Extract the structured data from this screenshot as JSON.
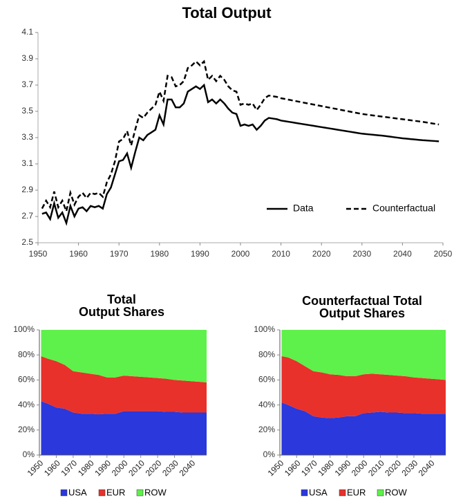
{
  "chart_data": [
    {
      "type": "line",
      "title": "Total Output",
      "x": [
        1951,
        1952,
        1953,
        1954,
        1955,
        1956,
        1957,
        1958,
        1959,
        1960,
        1961,
        1962,
        1963,
        1964,
        1965,
        1966,
        1967,
        1968,
        1969,
        1970,
        1971,
        1972,
        1973,
        1974,
        1975,
        1976,
        1977,
        1978,
        1979,
        1980,
        1981,
        1982,
        1983,
        1984,
        1985,
        1986,
        1987,
        1988,
        1989,
        1990,
        1991,
        1992,
        1993,
        1994,
        1995,
        1996,
        1997,
        1998,
        1999,
        2000,
        2001,
        2002,
        2003,
        2004,
        2005,
        2006,
        2007,
        2008,
        2009,
        2010,
        2011,
        2012,
        2013,
        2014,
        2015,
        2016,
        2017,
        2018,
        2019,
        2020,
        2021,
        2022,
        2023,
        2024,
        2025,
        2026,
        2027,
        2028,
        2029,
        2030,
        2031,
        2032,
        2033,
        2034,
        2035,
        2036,
        2037,
        2038,
        2039,
        2040,
        2041,
        2042,
        2043,
        2044,
        2045,
        2046,
        2047,
        2048,
        2049
      ],
      "series": [
        {
          "name": "Data",
          "color": "#000000",
          "line_style": "solid",
          "values": [
            2.72,
            2.73,
            2.68,
            2.8,
            2.69,
            2.73,
            2.65,
            2.78,
            2.7,
            2.76,
            2.77,
            2.74,
            2.78,
            2.77,
            2.78,
            2.76,
            2.87,
            2.92,
            3.02,
            3.12,
            3.13,
            3.18,
            3.07,
            3.19,
            3.3,
            3.28,
            3.32,
            3.34,
            3.36,
            3.47,
            3.4,
            3.59,
            3.59,
            3.53,
            3.53,
            3.56,
            3.65,
            3.67,
            3.69,
            3.67,
            3.7,
            3.57,
            3.59,
            3.56,
            3.59,
            3.56,
            3.52,
            3.49,
            3.48,
            3.39,
            3.4,
            3.39,
            3.4,
            3.36,
            3.39,
            3.43,
            3.45,
            3.445,
            3.44,
            3.43,
            3.425,
            3.42,
            3.415,
            3.41,
            3.405,
            3.4,
            3.395,
            3.39,
            3.385,
            3.38,
            3.375,
            3.37,
            3.365,
            3.36,
            3.355,
            3.35,
            3.345,
            3.34,
            3.335,
            3.33,
            3.327,
            3.324,
            3.321,
            3.318,
            3.315,
            3.311,
            3.307,
            3.303,
            3.299,
            3.295,
            3.292,
            3.289,
            3.286,
            3.283,
            3.28,
            3.278,
            3.276,
            3.274,
            3.272
          ]
        },
        {
          "name": "Counterfactual",
          "color": "#000000",
          "line_style": "dashed",
          "values": [
            2.76,
            2.82,
            2.77,
            2.89,
            2.77,
            2.82,
            2.74,
            2.88,
            2.79,
            2.85,
            2.88,
            2.84,
            2.88,
            2.87,
            2.88,
            2.85,
            2.96,
            3.02,
            3.12,
            3.27,
            3.29,
            3.35,
            3.24,
            3.36,
            3.47,
            3.45,
            3.49,
            3.52,
            3.55,
            3.65,
            3.58,
            3.77,
            3.76,
            3.69,
            3.7,
            3.73,
            3.83,
            3.85,
            3.88,
            3.85,
            3.88,
            3.74,
            3.77,
            3.73,
            3.77,
            3.74,
            3.69,
            3.66,
            3.65,
            3.55,
            3.56,
            3.55,
            3.56,
            3.51,
            3.55,
            3.6,
            3.62,
            3.615,
            3.61,
            3.6,
            3.594,
            3.588,
            3.582,
            3.576,
            3.57,
            3.564,
            3.558,
            3.552,
            3.546,
            3.54,
            3.534,
            3.528,
            3.522,
            3.516,
            3.51,
            3.504,
            3.498,
            3.492,
            3.486,
            3.48,
            3.476,
            3.472,
            3.468,
            3.464,
            3.46,
            3.456,
            3.452,
            3.448,
            3.444,
            3.44,
            3.436,
            3.432,
            3.428,
            3.424,
            3.42,
            3.415,
            3.41,
            3.405,
            3.4
          ]
        }
      ],
      "xlim": [
        1950,
        2050
      ],
      "xticks": [
        1950,
        1960,
        1970,
        1980,
        1990,
        2000,
        2010,
        2020,
        2030,
        2040,
        2050
      ],
      "ylim": [
        2.5,
        4.1
      ],
      "yticks": [
        2.5,
        2.7,
        2.9,
        3.1,
        3.3,
        3.5,
        3.7,
        3.9,
        4.1
      ],
      "legend": "lower right"
    },
    {
      "type": "area",
      "stacked": true,
      "title": [
        "Total",
        "Output Shares"
      ],
      "x": [
        1951,
        1955,
        1960,
        1965,
        1970,
        1975,
        1980,
        1985,
        1990,
        1995,
        2000,
        2005,
        2010,
        2015,
        2020,
        2025,
        2030,
        2035,
        2040,
        2045,
        2049
      ],
      "series": [
        {
          "name": "USA",
          "color": "#2a38dc",
          "values": [
            43,
            41,
            38,
            37,
            34,
            33,
            33,
            32.5,
            33,
            33,
            35,
            35,
            35,
            35,
            35,
            34.5,
            34.5,
            34,
            34,
            34,
            34
          ]
        },
        {
          "name": "EUR",
          "color": "#e8312b",
          "values": [
            36,
            36,
            37,
            35,
            33,
            33,
            32,
            31.5,
            29,
            29,
            28.5,
            28,
            27.5,
            27,
            26.5,
            26.5,
            25.5,
            25.5,
            25,
            24.5,
            24
          ]
        },
        {
          "name": "ROW",
          "color": "#5ef04b",
          "values": [
            21,
            23,
            25,
            28,
            33,
            34,
            35,
            36,
            38,
            38,
            36.5,
            37,
            37.5,
            38,
            38.5,
            39,
            40,
            40.5,
            41,
            41.5,
            42
          ]
        }
      ],
      "xlim": [
        1950,
        2049
      ],
      "xticks": [
        1950,
        1960,
        1970,
        1980,
        1990,
        2000,
        2010,
        2020,
        2030,
        2040
      ],
      "ylim": [
        0,
        100
      ],
      "yticks": [
        {
          "value": 0,
          "label": "0%"
        },
        {
          "value": 20,
          "label": "20%"
        },
        {
          "value": 40,
          "label": "40%"
        },
        {
          "value": 60,
          "label": "60%"
        },
        {
          "value": 80,
          "label": "80%"
        },
        {
          "value": 100,
          "label": "100%"
        }
      ],
      "legend": "bottom"
    },
    {
      "type": "area",
      "stacked": true,
      "title": [
        "Counterfactual Total",
        "Output Shares"
      ],
      "x": [
        1951,
        1955,
        1960,
        1965,
        1970,
        1975,
        1980,
        1985,
        1990,
        1995,
        2000,
        2005,
        2010,
        2015,
        2020,
        2025,
        2030,
        2035,
        2040,
        2045,
        2049
      ],
      "series": [
        {
          "name": "USA",
          "color": "#2a38dc",
          "values": [
            42,
            40,
            37,
            35,
            31,
            30,
            29.5,
            30,
            31,
            31,
            33.5,
            34,
            34.5,
            34,
            34,
            33.5,
            33.5,
            33,
            33,
            33,
            33
          ]
        },
        {
          "name": "EUR",
          "color": "#e8312b",
          "values": [
            37,
            38,
            38,
            36,
            36,
            36,
            35,
            34,
            32,
            32,
            31,
            31,
            30,
            30,
            29.5,
            29.5,
            28.5,
            28.5,
            28,
            27.5,
            27
          ]
        },
        {
          "name": "ROW",
          "color": "#5ef04b",
          "values": [
            21,
            22,
            25,
            29,
            33,
            34,
            35.5,
            36,
            37,
            37,
            35.5,
            35,
            35.5,
            36,
            36.5,
            37,
            38,
            38.5,
            39,
            39.5,
            40
          ]
        }
      ],
      "xlim": [
        1950,
        2049
      ],
      "xticks": [
        1950,
        1960,
        1970,
        1980,
        1990,
        2000,
        2010,
        2020,
        2030,
        2040
      ],
      "ylim": [
        0,
        100
      ],
      "yticks": [
        {
          "value": 0,
          "label": "0%"
        },
        {
          "value": 20,
          "label": "20%"
        },
        {
          "value": 40,
          "label": "40%"
        },
        {
          "value": 60,
          "label": "60%"
        },
        {
          "value": 80,
          "label": "80%"
        },
        {
          "value": 100,
          "label": "100%"
        }
      ],
      "legend": "bottom"
    }
  ]
}
